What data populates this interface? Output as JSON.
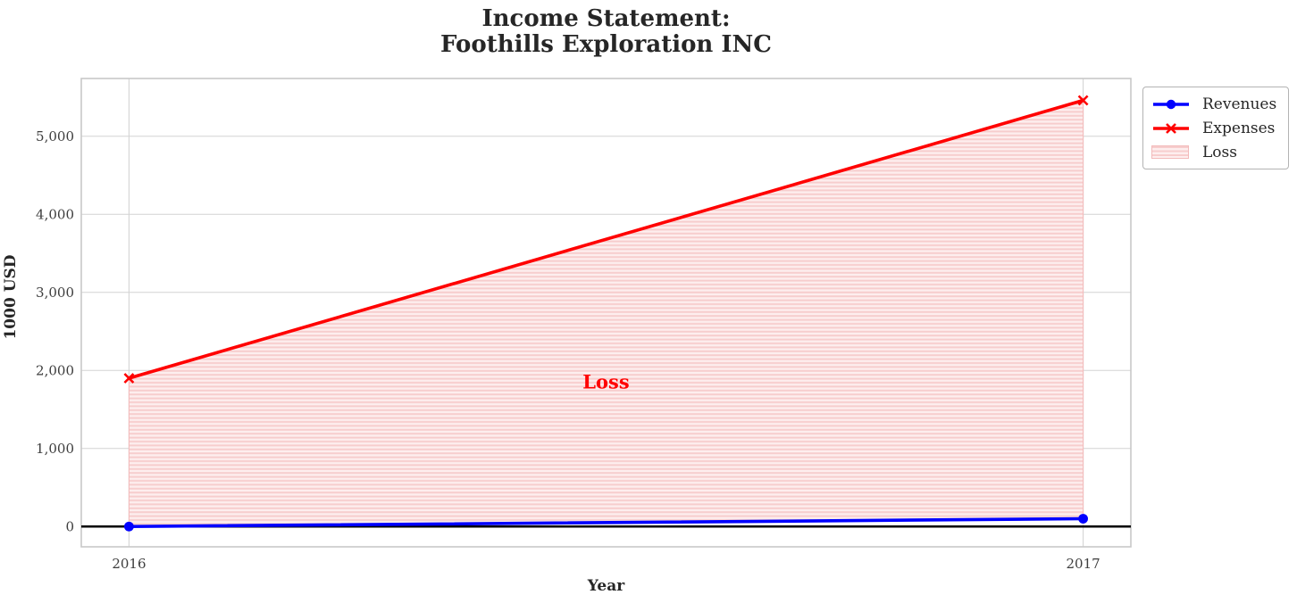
{
  "title": {
    "line1": "Income Statement:",
    "line2": "Foothills Exploration INC"
  },
  "legend": {
    "items": [
      {
        "label": "Revenues",
        "color": "#0000ff",
        "marker": "circle"
      },
      {
        "label": "Expenses",
        "color": "#ff0000",
        "marker": "x"
      },
      {
        "label": "Loss",
        "color": "#ff9999",
        "marker": "hatch-patch"
      }
    ]
  },
  "chart_data": {
    "type": "line",
    "title": "Income Statement:\nFoothills Exploration INC",
    "xlabel": "Year",
    "ylabel": "1000 USD",
    "x": [
      2016,
      2017
    ],
    "x_tick_labels": [
      "2016",
      "2017"
    ],
    "xlim": [
      2015.95,
      2017.05
    ],
    "ylim": [
      -260,
      5740
    ],
    "y_ticks": [
      0,
      1000,
      2000,
      3000,
      4000,
      5000
    ],
    "y_tick_labels": [
      "0",
      "1,000",
      "2,000",
      "3,000",
      "4,000",
      "5,000"
    ],
    "grid": true,
    "legend_position": "upper right, outside axes",
    "series": [
      {
        "name": "Revenues",
        "values": [
          0,
          100
        ],
        "color": "#0000ff",
        "marker": "circle"
      },
      {
        "name": "Expenses",
        "values": [
          1900,
          5460
        ],
        "color": "#ff0000",
        "marker": "x"
      }
    ],
    "fill_between": {
      "name": "Loss",
      "between": [
        "Expenses",
        "Revenues"
      ],
      "hatch": "horizontal",
      "annotation": {
        "text": "Loss",
        "x": 2016.5,
        "y": 1850
      }
    },
    "zero_line": {
      "y": 0,
      "color": "#000000"
    }
  },
  "colors": {
    "revenues": "#0000ff",
    "expenses": "#ff0000",
    "loss_fill_bg": "#fdeeee",
    "loss_fill_stripe": "#f7cdcd",
    "loss_fill_edge": "#f3baba",
    "loss_text": "#ff0000",
    "grid": "#d4d4d4",
    "spine": "#c8c8c8",
    "tick_text": "#3d3d3d",
    "title_text": "#262626",
    "zero_line": "#000000",
    "legend_border": "#b3b3b3",
    "background": "#ffffff"
  }
}
